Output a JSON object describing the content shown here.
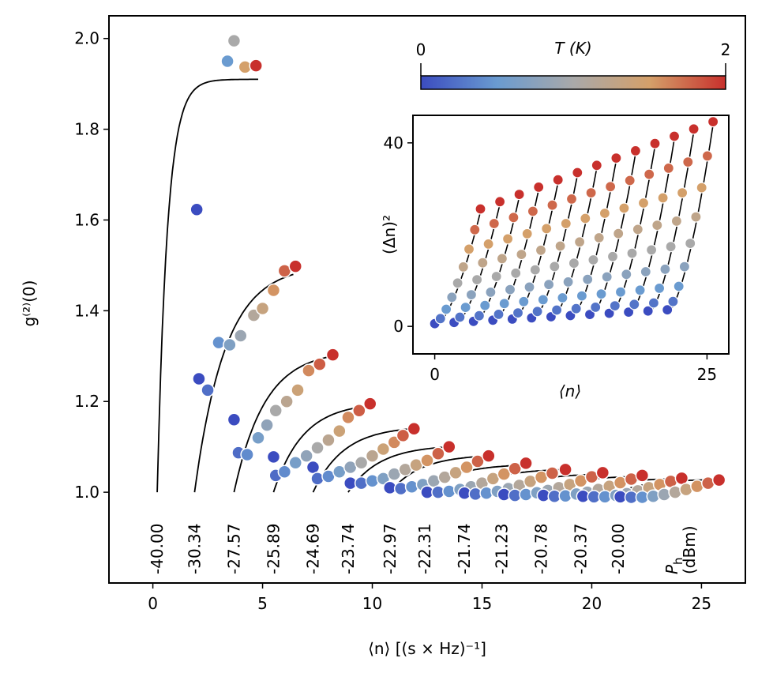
{
  "chart_data": {
    "type": "scatter",
    "title": "",
    "xlabel": "⟨n⟩ [(s × Hz)⁻¹]",
    "ylabel": "g⁽²⁾(0)",
    "xlim": [
      -2,
      27
    ],
    "ylim": [
      0.8,
      2.05
    ],
    "xticks": [
      "0",
      "5",
      "10",
      "15",
      "20",
      "25"
    ],
    "yticks": [
      "1.0",
      "1.2",
      "1.4",
      "1.6",
      "1.8",
      "2.0"
    ],
    "colorbar": {
      "label": "T (K)",
      "min": "0",
      "max": "2",
      "colors": [
        "#3b4cc0",
        "#6a9bd0",
        "#a9a9a9",
        "#d4a06a",
        "#c8302c"
      ]
    },
    "power_label_line1": "P",
    "power_label_sub": "h",
    "power_label_line2": "(dBm)",
    "powers": [
      "-40.00",
      "-30.34",
      "-27.57",
      "-25.89",
      "-24.69",
      "-23.74",
      "-22.97",
      "-22.31",
      "-21.74",
      "-21.23",
      "-20.78",
      "-20.37",
      "-20.00"
    ],
    "series": [
      {
        "power": "-40.00",
        "x0": 0.2,
        "x1": 4.8,
        "yend": 1.91,
        "points": [
          [
            2.0,
            1.623
          ],
          [
            3.4,
            1.95
          ],
          [
            3.7,
            1.995
          ],
          [
            4.2,
            1.937
          ],
          [
            4.7,
            1.94
          ]
        ]
      },
      {
        "power": "-30.34",
        "x0": 1.9,
        "x1": 6.4,
        "yend": 1.48,
        "points": [
          [
            2.1,
            1.25
          ],
          [
            2.5,
            1.225
          ],
          [
            3.0,
            1.33
          ],
          [
            3.5,
            1.325
          ],
          [
            4.0,
            1.345
          ],
          [
            4.6,
            1.39
          ],
          [
            5.0,
            1.405
          ],
          [
            5.5,
            1.445
          ],
          [
            6.0,
            1.488
          ],
          [
            6.5,
            1.498
          ]
        ]
      },
      {
        "power": "-27.57",
        "x0": 3.7,
        "x1": 8.2,
        "yend": 1.3,
        "points": [
          [
            3.7,
            1.16
          ],
          [
            3.9,
            1.087
          ],
          [
            4.3,
            1.083
          ],
          [
            4.8,
            1.12
          ],
          [
            5.2,
            1.148
          ],
          [
            5.6,
            1.18
          ],
          [
            6.1,
            1.2
          ],
          [
            6.6,
            1.225
          ],
          [
            7.1,
            1.268
          ],
          [
            7.6,
            1.282
          ],
          [
            8.2,
            1.303
          ]
        ]
      },
      {
        "power": "-25.89",
        "x0": 5.5,
        "x1": 9.8,
        "yend": 1.19,
        "points": [
          [
            5.5,
            1.078
          ],
          [
            5.6,
            1.037
          ],
          [
            6.0,
            1.045
          ],
          [
            6.5,
            1.065
          ],
          [
            7.0,
            1.08
          ],
          [
            7.5,
            1.098
          ],
          [
            8.0,
            1.115
          ],
          [
            8.5,
            1.135
          ],
          [
            8.9,
            1.165
          ],
          [
            9.4,
            1.18
          ],
          [
            9.9,
            1.195
          ]
        ]
      },
      {
        "power": "-24.69",
        "x0": 7.3,
        "x1": 11.8,
        "yend": 1.14,
        "points": [
          [
            7.3,
            1.055
          ],
          [
            7.5,
            1.03
          ],
          [
            8.0,
            1.035
          ],
          [
            8.5,
            1.045
          ],
          [
            9.0,
            1.055
          ],
          [
            9.5,
            1.065
          ],
          [
            10.0,
            1.08
          ],
          [
            10.5,
            1.095
          ],
          [
            11.0,
            1.11
          ],
          [
            11.4,
            1.125
          ],
          [
            11.9,
            1.14
          ]
        ]
      },
      {
        "power": "-23.74",
        "x0": 8.9,
        "x1": 13.5,
        "yend": 1.1,
        "points": [
          [
            9.0,
            1.02
          ],
          [
            9.5,
            1.02
          ],
          [
            10.0,
            1.025
          ],
          [
            10.5,
            1.03
          ],
          [
            11.0,
            1.04
          ],
          [
            11.5,
            1.05
          ],
          [
            12.0,
            1.06
          ],
          [
            12.5,
            1.07
          ],
          [
            13.0,
            1.085
          ],
          [
            13.5,
            1.1
          ]
        ]
      },
      {
        "power": "-22.97",
        "x0": 10.8,
        "x1": 15.3,
        "yend": 1.08,
        "points": [
          [
            10.8,
            1.01
          ],
          [
            11.3,
            1.008
          ],
          [
            11.8,
            1.012
          ],
          [
            12.3,
            1.017
          ],
          [
            12.8,
            1.025
          ],
          [
            13.3,
            1.033
          ],
          [
            13.8,
            1.043
          ],
          [
            14.3,
            1.055
          ],
          [
            14.8,
            1.068
          ],
          [
            15.3,
            1.08
          ]
        ]
      },
      {
        "power": "-22.31",
        "x0": 12.4,
        "x1": 17.0,
        "yend": 1.06,
        "points": [
          [
            12.5,
            1.0
          ],
          [
            13.0,
            1.0
          ],
          [
            13.5,
            1.002
          ],
          [
            14.0,
            1.006
          ],
          [
            14.5,
            1.012
          ],
          [
            15.0,
            1.02
          ],
          [
            15.5,
            1.03
          ],
          [
            16.0,
            1.04
          ],
          [
            16.5,
            1.052
          ],
          [
            17.0,
            1.064
          ]
        ]
      },
      {
        "power": "-21.74",
        "x0": 14.2,
        "x1": 18.8,
        "yend": 1.05,
        "points": [
          [
            14.2,
            0.998
          ],
          [
            14.7,
            0.996
          ],
          [
            15.2,
            0.998
          ],
          [
            15.7,
            1.002
          ],
          [
            16.2,
            1.008
          ],
          [
            16.7,
            1.015
          ],
          [
            17.2,
            1.024
          ],
          [
            17.7,
            1.033
          ],
          [
            18.2,
            1.042
          ],
          [
            18.8,
            1.05
          ]
        ]
      },
      {
        "power": "-21.23",
        "x0": 15.9,
        "x1": 20.6,
        "yend": 1.04,
        "points": [
          [
            16.0,
            0.995
          ],
          [
            16.5,
            0.993
          ],
          [
            17.0,
            0.995
          ],
          [
            17.5,
            0.999
          ],
          [
            18.0,
            1.004
          ],
          [
            18.5,
            1.01
          ],
          [
            19.0,
            1.017
          ],
          [
            19.5,
            1.025
          ],
          [
            20.0,
            1.034
          ],
          [
            20.5,
            1.043
          ]
        ]
      },
      {
        "power": "-20.78",
        "x0": 17.7,
        "x1": 22.3,
        "yend": 1.035,
        "points": [
          [
            17.8,
            0.993
          ],
          [
            18.3,
            0.991
          ],
          [
            18.8,
            0.992
          ],
          [
            19.3,
            0.996
          ],
          [
            19.8,
            1.0
          ],
          [
            20.3,
            1.006
          ],
          [
            20.8,
            1.013
          ],
          [
            21.3,
            1.021
          ],
          [
            21.8,
            1.029
          ],
          [
            22.3,
            1.037
          ]
        ]
      },
      {
        "power": "-20.37",
        "x0": 19.5,
        "x1": 24.1,
        "yend": 1.03,
        "points": [
          [
            19.6,
            0.991
          ],
          [
            20.1,
            0.99
          ],
          [
            20.6,
            0.99
          ],
          [
            21.1,
            0.993
          ],
          [
            21.6,
            0.997
          ],
          [
            22.1,
            1.003
          ],
          [
            22.6,
            1.01
          ],
          [
            23.1,
            1.017
          ],
          [
            23.6,
            1.024
          ],
          [
            24.1,
            1.031
          ]
        ]
      },
      {
        "power": "-20.00",
        "x0": 21.2,
        "x1": 25.8,
        "yend": 1.028,
        "points": [
          [
            21.3,
            0.99
          ],
          [
            21.8,
            0.989
          ],
          [
            22.3,
            0.989
          ],
          [
            22.8,
            0.991
          ],
          [
            23.3,
            0.995
          ],
          [
            23.8,
            1.0
          ],
          [
            24.3,
            1.006
          ],
          [
            24.8,
            1.013
          ],
          [
            25.3,
            1.02
          ],
          [
            25.8,
            1.027
          ]
        ]
      }
    ],
    "inset": {
      "type": "scatter",
      "xlabel": "⟨n⟩",
      "ylabel": "(Δn)²",
      "xlim": [
        -2,
        27
      ],
      "ylim": [
        -6,
        46
      ],
      "xticks": [
        "0",
        "25"
      ],
      "yticks": [
        "0",
        "40"
      ],
      "n_series": 13,
      "x_step": 1.78,
      "base_low_start": 0.0,
      "base_high_start": 25.0,
      "base_low_end": 20.0,
      "base_high_end": 44.0
    }
  }
}
